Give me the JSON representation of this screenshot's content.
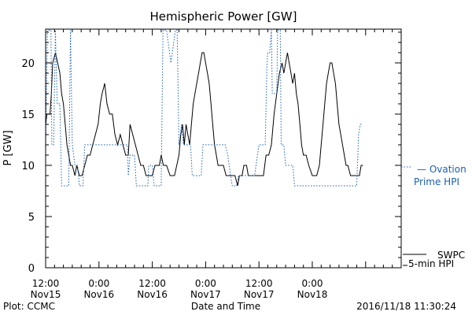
{
  "colors": {
    "background": "#ffffff",
    "axis": "#000000",
    "swpc": "#000000",
    "ovation": "#1a5fb4"
  },
  "chart_data": {
    "type": "line",
    "title": "Hemispheric Power [GW]",
    "xlabel": "Date and Time",
    "ylabel": "P [GW]",
    "ylim": [
      0,
      23.3
    ],
    "xlim": [
      0,
      80
    ],
    "x_unit_note": "hours",
    "yticks": [
      0,
      5,
      10,
      15,
      20
    ],
    "xticks": [
      {
        "x": 0,
        "line1": "12:00",
        "line2": "Nov15"
      },
      {
        "x": 12,
        "line1": "0:00",
        "line2": "Nov16"
      },
      {
        "x": 24,
        "line1": "12:00",
        "line2": "Nov16"
      },
      {
        "x": 36,
        "line1": "0:00",
        "line2": "Nov17"
      },
      {
        "x": 48,
        "line1": "12:00",
        "line2": "Nov17"
      },
      {
        "x": 60,
        "line1": "0:00",
        "line2": "Nov18"
      }
    ],
    "series": [
      {
        "name": "SWPC 5-min HPI",
        "style": "solid",
        "color": "#000000",
        "points": [
          [
            0,
            14
          ],
          [
            0.3,
            15
          ],
          [
            1,
            15
          ],
          [
            1.3,
            17
          ],
          [
            1.6,
            20
          ],
          [
            2.2,
            21
          ],
          [
            2.7,
            20
          ],
          [
            3.2,
            19
          ],
          [
            3.6,
            17
          ],
          [
            4,
            16
          ],
          [
            4.4,
            14
          ],
          [
            4.8,
            12
          ],
          [
            5.2,
            11
          ],
          [
            5.6,
            10
          ],
          [
            6,
            10
          ],
          [
            6.6,
            9
          ],
          [
            7,
            10
          ],
          [
            7.6,
            9
          ],
          [
            8.2,
            9
          ],
          [
            8.8,
            10
          ],
          [
            9.4,
            11
          ],
          [
            10,
            11
          ],
          [
            10.6,
            12
          ],
          [
            11.2,
            13
          ],
          [
            11.8,
            14
          ],
          [
            12.3,
            16
          ],
          [
            12.7,
            17
          ],
          [
            13.3,
            18
          ],
          [
            13.8,
            16
          ],
          [
            14.4,
            15
          ],
          [
            15,
            15
          ],
          [
            15.6,
            13
          ],
          [
            16.2,
            12
          ],
          [
            16.8,
            13
          ],
          [
            17.4,
            12
          ],
          [
            18,
            11
          ],
          [
            18.6,
            11
          ],
          [
            19,
            14
          ],
          [
            19.6,
            13
          ],
          [
            20.2,
            12
          ],
          [
            20.8,
            11
          ],
          [
            21.4,
            10
          ],
          [
            22,
            10
          ],
          [
            22.6,
            9
          ],
          [
            23.4,
            9
          ],
          [
            24,
            9
          ],
          [
            24.6,
            10
          ],
          [
            25.6,
            10
          ],
          [
            26,
            11
          ],
          [
            26.5,
            10
          ],
          [
            27.2,
            10
          ],
          [
            28,
            9
          ],
          [
            29,
            9
          ],
          [
            29.5,
            10
          ],
          [
            30,
            11
          ],
          [
            30.4,
            13
          ],
          [
            30.8,
            14
          ],
          [
            31.2,
            12
          ],
          [
            31.6,
            14
          ],
          [
            32,
            13
          ],
          [
            32.4,
            12
          ],
          [
            32.8,
            14
          ],
          [
            33.2,
            16
          ],
          [
            33.6,
            17
          ],
          [
            34,
            18
          ],
          [
            34.4,
            19
          ],
          [
            34.8,
            20
          ],
          [
            35.2,
            21
          ],
          [
            35.6,
            21
          ],
          [
            36,
            20
          ],
          [
            36.4,
            19
          ],
          [
            36.8,
            18
          ],
          [
            37.2,
            16
          ],
          [
            37.6,
            14
          ],
          [
            38,
            12
          ],
          [
            38.4,
            11
          ],
          [
            38.8,
            10
          ],
          [
            39.4,
            10
          ],
          [
            40,
            10
          ],
          [
            40.6,
            9
          ],
          [
            41.6,
            9
          ],
          [
            42.6,
            9
          ],
          [
            43.2,
            8
          ],
          [
            43.6,
            9
          ],
          [
            44.2,
            9
          ],
          [
            44.6,
            10
          ],
          [
            45.2,
            10
          ],
          [
            45.6,
            9
          ],
          [
            46.2,
            9
          ],
          [
            47,
            9
          ],
          [
            48,
            9
          ],
          [
            49,
            9
          ],
          [
            49.6,
            11
          ],
          [
            50.2,
            11
          ],
          [
            50.8,
            12
          ],
          [
            51.4,
            15
          ],
          [
            52,
            17
          ],
          [
            52.6,
            19
          ],
          [
            53.2,
            20
          ],
          [
            53.6,
            19
          ],
          [
            54,
            20
          ],
          [
            54.4,
            21
          ],
          [
            54.8,
            20
          ],
          [
            55.2,
            19
          ],
          [
            55.6,
            18
          ],
          [
            56,
            19
          ],
          [
            56.4,
            17
          ],
          [
            56.8,
            16
          ],
          [
            57.2,
            14
          ],
          [
            57.6,
            12
          ],
          [
            58,
            11
          ],
          [
            58.6,
            11
          ],
          [
            59.2,
            10
          ],
          [
            60,
            9
          ],
          [
            61,
            9
          ],
          [
            61.6,
            10
          ],
          [
            62,
            12
          ],
          [
            62.4,
            14
          ],
          [
            62.8,
            16
          ],
          [
            63.2,
            18
          ],
          [
            63.6,
            19
          ],
          [
            64,
            20
          ],
          [
            64.4,
            20
          ],
          [
            64.8,
            19
          ],
          [
            65.2,
            18
          ],
          [
            65.6,
            16
          ],
          [
            66,
            14
          ],
          [
            66.4,
            13
          ],
          [
            66.8,
            12
          ],
          [
            67.2,
            11
          ],
          [
            67.6,
            10
          ],
          [
            68,
            10
          ],
          [
            68.6,
            9
          ],
          [
            70,
            9
          ],
          [
            70.6,
            9
          ],
          [
            71,
            10
          ],
          [
            71.4,
            10
          ]
        ]
      },
      {
        "name": "Ovation Prime HPI",
        "style": "dotted",
        "color": "#1a5fb4",
        "points": [
          [
            0,
            12
          ],
          [
            0.4,
            23.2
          ],
          [
            0.8,
            23.2
          ],
          [
            1.2,
            23.2
          ],
          [
            1.4,
            12
          ],
          [
            1.8,
            12
          ],
          [
            2.2,
            23.2
          ],
          [
            2.6,
            16
          ],
          [
            3.2,
            16
          ],
          [
            3.6,
            8
          ],
          [
            5.2,
            8
          ],
          [
            5.6,
            23.2
          ],
          [
            6,
            12
          ],
          [
            6.6,
            10
          ],
          [
            7.2,
            10
          ],
          [
            7.6,
            8
          ],
          [
            8.4,
            8
          ],
          [
            8.8,
            12
          ],
          [
            9.6,
            12
          ],
          [
            12,
            12
          ],
          [
            15,
            12
          ],
          [
            18.4,
            12
          ],
          [
            18.6,
            9
          ],
          [
            19,
            11
          ],
          [
            20,
            11
          ],
          [
            20.4,
            8
          ],
          [
            23,
            8
          ],
          [
            23.2,
            10
          ],
          [
            24,
            10
          ],
          [
            24.4,
            8
          ],
          [
            26,
            8
          ],
          [
            26.4,
            23.2
          ],
          [
            27,
            23.2
          ],
          [
            27.2,
            23.2
          ],
          [
            28.2,
            20
          ],
          [
            29.2,
            23.2
          ],
          [
            29.6,
            23.2
          ],
          [
            30,
            12
          ],
          [
            30.6,
            14
          ],
          [
            31,
            12
          ],
          [
            32.6,
            12
          ],
          [
            33,
            9
          ],
          [
            35,
            9
          ],
          [
            35.4,
            12
          ],
          [
            40,
            12
          ],
          [
            40.4,
            12
          ],
          [
            41,
            11
          ],
          [
            41.6,
            9
          ],
          [
            42,
            8
          ],
          [
            43,
            8
          ],
          [
            43.4,
            9
          ],
          [
            44,
            9
          ],
          [
            45,
            9
          ],
          [
            46,
            9
          ],
          [
            47,
            9
          ],
          [
            48,
            12
          ],
          [
            49.4,
            12
          ],
          [
            49.8,
            20
          ],
          [
            50,
            21
          ],
          [
            50.4,
            21
          ],
          [
            50.8,
            23.2
          ],
          [
            51,
            17
          ],
          [
            52,
            17
          ],
          [
            52.2,
            23.2
          ],
          [
            52.8,
            23.2
          ],
          [
            53,
            12
          ],
          [
            53.6,
            12
          ],
          [
            54,
            10
          ],
          [
            55.6,
            10
          ],
          [
            56,
            8
          ],
          [
            58,
            8
          ],
          [
            63,
            8
          ],
          [
            68,
            8
          ],
          [
            70,
            8
          ],
          [
            70.4,
            13
          ],
          [
            70.8,
            14
          ],
          [
            71.2,
            14
          ]
        ]
      }
    ]
  },
  "legend": [
    {
      "text": "— Ovation",
      "text2": "Prime HPI"
    },
    {
      "text": "SWPC",
      "text2": "5-min HPI"
    }
  ],
  "footer": {
    "left": "Plot: CCMC",
    "center": "Date and Time",
    "right": "2016/11/18 11:30:24"
  }
}
